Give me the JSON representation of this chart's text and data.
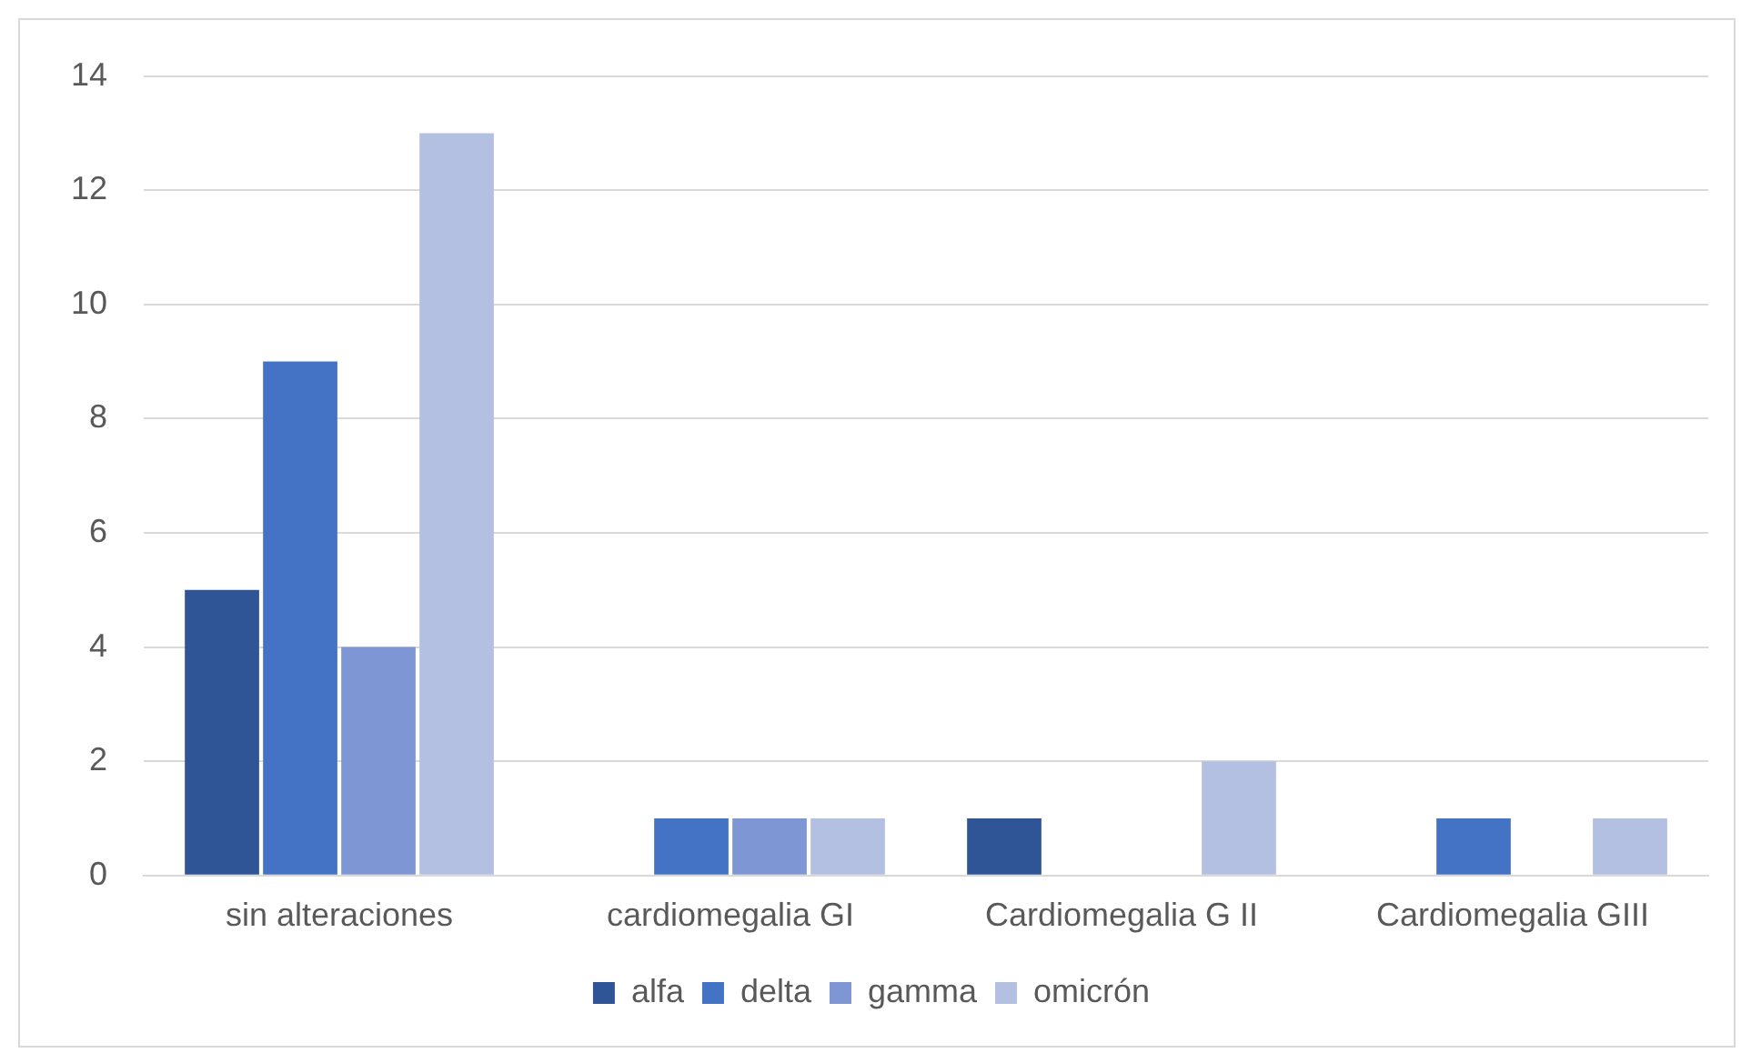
{
  "chart_data": {
    "type": "bar",
    "categories": [
      "sin alteraciones",
      "cardiomegalia GI",
      "Cardiomegalia G II",
      "Cardiomegalia GIII"
    ],
    "series": [
      {
        "name": "alfa",
        "color": "#2f5597",
        "values": [
          5,
          0,
          1,
          0
        ]
      },
      {
        "name": "delta",
        "color": "#4472c4",
        "values": [
          9,
          1,
          0,
          1
        ]
      },
      {
        "name": "gamma",
        "color": "#7f96d4",
        "values": [
          4,
          1,
          0,
          0
        ]
      },
      {
        "name": "omicrón",
        "color": "#b4c0e2",
        "values": [
          13,
          1,
          2,
          1
        ]
      }
    ],
    "ylim": [
      0,
      14
    ],
    "yticks": [
      0,
      2,
      4,
      6,
      8,
      10,
      12,
      14
    ],
    "grid": "y",
    "legend": "bottom"
  }
}
